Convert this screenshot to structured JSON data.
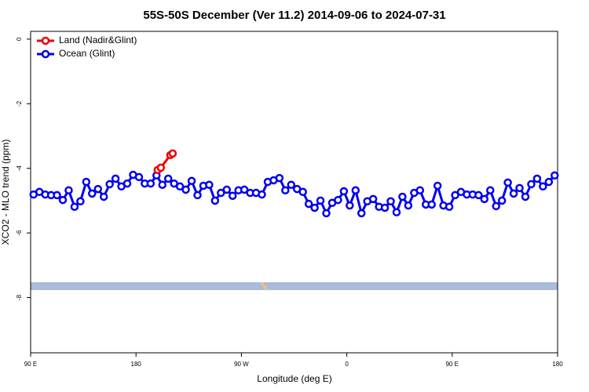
{
  "chart_data": {
    "type": "line",
    "title": "55S-50S December (Ver 11.2)   2014-09-06 to 2024-07-31",
    "x_label": "Longitude (deg E)",
    "y_label": "XCO2 - MLO trend (ppm)",
    "xlim": [
      90,
      540
    ],
    "xticks": [
      {
        "value": 90,
        "label": "90 E"
      },
      180,
      {
        "value": 270,
        "label": "90 W"
      },
      {
        "value": 360,
        "label": "0"
      },
      {
        "value": 450,
        "label": "90 E"
      },
      {
        "value": 540,
        "label": "180"
      }
    ],
    "ylim": [
      -9.71,
      0.24
    ],
    "yticks": [
      0,
      -2,
      -4,
      -6,
      -8
    ],
    "legend": "top-left",
    "series": [
      {
        "name": "Land (Nadir&Glint)",
        "color": "#ee0000",
        "x": [
          198.5,
          201.2,
          209.3,
          211.3
        ],
        "values": [
          -4.05,
          -3.98,
          -3.59,
          -3.54
        ]
      },
      {
        "name": "Ocean (Glint)",
        "color": "#0000ee",
        "x": [
          92.5,
          97.5,
          102.5,
          107.5,
          112.5,
          117.5,
          122.5,
          127.5,
          132.5,
          137.5,
          142.5,
          147.5,
          152.5,
          157.5,
          162.5,
          167.5,
          172.5,
          177.5,
          182.5,
          187.5,
          192.5,
          197.5,
          202.5,
          207.5,
          212.5,
          217.5,
          222.5,
          227.5,
          232.5,
          237.5,
          242.5,
          247.5,
          252.5,
          257.5,
          262.5,
          267.5,
          272.5,
          277.5,
          282.5,
          287.5,
          292.5,
          297.5,
          302.5,
          307.5,
          312.5,
          317.5,
          322.5,
          327.5,
          332.5,
          337.5,
          342.5,
          347.5,
          352.5,
          357.5,
          362.5,
          367.5,
          372.5,
          377.5,
          382.5,
          387.5,
          392.5,
          397.5,
          402.5,
          407.5,
          412.5,
          417.5,
          422.5,
          427.5,
          432.5,
          437.5,
          442.5,
          447.5,
          452.5,
          457.5,
          462.5,
          467.5,
          472.5,
          477.5,
          482.5,
          487.5,
          492.5,
          497.5,
          502.5,
          507.5,
          512.5,
          517.5,
          522.5,
          527.5,
          532.5,
          537.5
        ],
        "values": [
          -4.81,
          -4.73,
          -4.81,
          -4.83,
          -4.83,
          -4.98,
          -4.68,
          -5.19,
          -5.02,
          -4.42,
          -4.78,
          -4.64,
          -4.88,
          -4.49,
          -4.32,
          -4.56,
          -4.47,
          -4.2,
          -4.27,
          -4.47,
          -4.47,
          -4.22,
          -4.51,
          -4.32,
          -4.47,
          -4.56,
          -4.66,
          -4.39,
          -4.83,
          -4.54,
          -4.51,
          -5.0,
          -4.76,
          -4.66,
          -4.85,
          -4.68,
          -4.66,
          -4.76,
          -4.76,
          -4.81,
          -4.42,
          -4.37,
          -4.3,
          -4.68,
          -4.51,
          -4.64,
          -4.73,
          -5.1,
          -5.22,
          -5.0,
          -5.39,
          -5.07,
          -4.98,
          -4.71,
          -5.15,
          -4.68,
          -5.39,
          -5.02,
          -4.95,
          -5.19,
          -5.22,
          -5.02,
          -5.36,
          -4.88,
          -5.15,
          -4.76,
          -4.68,
          -5.12,
          -5.12,
          -4.54,
          -5.15,
          -5.19,
          -4.83,
          -4.73,
          -4.81,
          -4.81,
          -4.83,
          -4.95,
          -4.68,
          -5.17,
          -5.0,
          -4.44,
          -4.78,
          -4.61,
          -4.88,
          -4.49,
          -4.32,
          -4.56,
          -4.42,
          -4.22
        ]
      }
    ]
  }
}
